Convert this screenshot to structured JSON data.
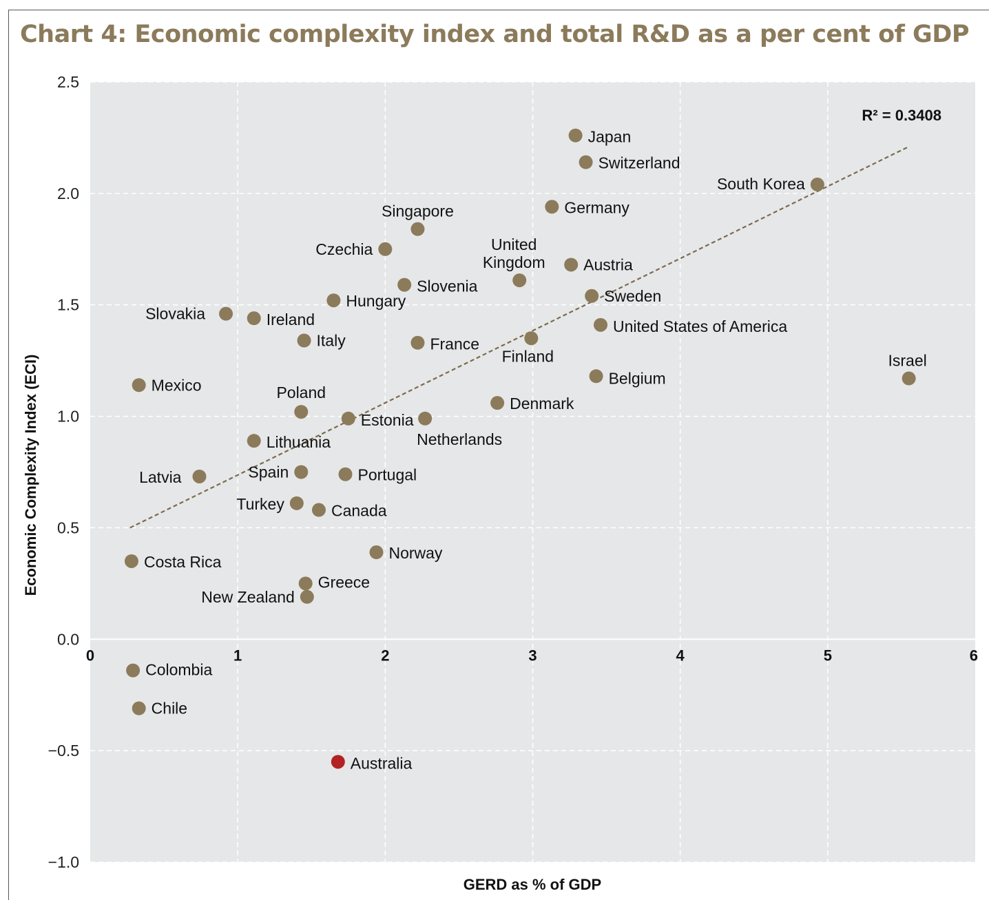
{
  "page_title": "Chart 4: Economic complexity index and total R&D as a per cent of GDP",
  "chart_data": {
    "type": "scatter",
    "title": "Chart 4: Economic complexity index and total R&D as a per cent of GDP",
    "xlabel": "GERD as % of GDP",
    "ylabel": "Economic Complexity Index (ECI)",
    "xlim": [
      0,
      6
    ],
    "ylim": [
      -1.0,
      2.5
    ],
    "x_ticks": [
      "0",
      "1",
      "2",
      "3",
      "4",
      "5",
      "6"
    ],
    "y_ticks": [
      "2.5",
      "2.0",
      "1.5",
      "1.0",
      "0.5",
      "0.0",
      "−0.5",
      "−1.0"
    ],
    "grid": true,
    "trendline": {
      "type": "linear",
      "from": [
        0.27,
        0.5
      ],
      "to": [
        5.55,
        2.21
      ],
      "label": "R² = 0.3408"
    },
    "colors": {
      "point": "#8b7b5b",
      "highlight": "#b22222",
      "plot_bg": "#e6e7e8",
      "title": "#8b7b5b",
      "trend": "#7b6a4f"
    },
    "points": [
      {
        "label": "Japan",
        "x": 3.29,
        "y": 2.26
      },
      {
        "label": "Switzerland",
        "x": 3.36,
        "y": 2.14
      },
      {
        "label": "South Korea",
        "x": 4.93,
        "y": 2.04
      },
      {
        "label": "Germany",
        "x": 3.13,
        "y": 1.94
      },
      {
        "label": "Singapore",
        "x": 2.22,
        "y": 1.84
      },
      {
        "label": "Czechia",
        "x": 2.0,
        "y": 1.75
      },
      {
        "label": "United Kingdom",
        "x": 2.91,
        "y": 1.61
      },
      {
        "label": "Austria",
        "x": 3.26,
        "y": 1.68
      },
      {
        "label": "Slovenia",
        "x": 2.13,
        "y": 1.59
      },
      {
        "label": "Sweden",
        "x": 3.4,
        "y": 1.54
      },
      {
        "label": "Hungary",
        "x": 1.65,
        "y": 1.52
      },
      {
        "label": "Slovakia",
        "x": 0.92,
        "y": 1.46
      },
      {
        "label": "Ireland",
        "x": 1.11,
        "y": 1.44
      },
      {
        "label": "United States of America",
        "x": 3.46,
        "y": 1.41
      },
      {
        "label": "Italy",
        "x": 1.45,
        "y": 1.34
      },
      {
        "label": "France",
        "x": 2.22,
        "y": 1.33
      },
      {
        "label": "Finland",
        "x": 2.99,
        "y": 1.35
      },
      {
        "label": "Israel",
        "x": 5.55,
        "y": 1.17
      },
      {
        "label": "Belgium",
        "x": 3.43,
        "y": 1.18
      },
      {
        "label": "Mexico",
        "x": 0.33,
        "y": 1.14
      },
      {
        "label": "Poland",
        "x": 1.43,
        "y": 1.02
      },
      {
        "label": "Denmark",
        "x": 2.76,
        "y": 1.06
      },
      {
        "label": "Estonia",
        "x": 1.75,
        "y": 0.99
      },
      {
        "label": "Netherlands",
        "x": 2.27,
        "y": 0.99
      },
      {
        "label": "Lithuania",
        "x": 1.11,
        "y": 0.89
      },
      {
        "label": "Spain",
        "x": 1.43,
        "y": 0.75
      },
      {
        "label": "Portugal",
        "x": 1.73,
        "y": 0.74
      },
      {
        "label": "Latvia",
        "x": 0.74,
        "y": 0.73
      },
      {
        "label": "Turkey",
        "x": 1.4,
        "y": 0.61
      },
      {
        "label": "Canada",
        "x": 1.55,
        "y": 0.58
      },
      {
        "label": "Norway",
        "x": 1.94,
        "y": 0.39
      },
      {
        "label": "Costa Rica",
        "x": 0.28,
        "y": 0.35
      },
      {
        "label": "Greece",
        "x": 1.46,
        "y": 0.25
      },
      {
        "label": "New Zealand",
        "x": 1.47,
        "y": 0.19
      },
      {
        "label": "Colombia",
        "x": 0.29,
        "y": -0.14
      },
      {
        "label": "Chile",
        "x": 0.33,
        "y": -0.31
      },
      {
        "label": "Australia",
        "x": 1.68,
        "y": -0.55,
        "highlight": true
      }
    ]
  }
}
